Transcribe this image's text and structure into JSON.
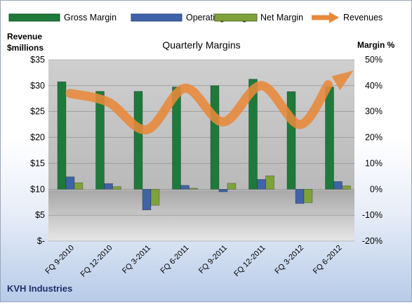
{
  "chart_data": {
    "type": "bar",
    "title": "Quarterly Margins",
    "left_axis_title": [
      "Revenue",
      "$millions"
    ],
    "right_axis_title": "Margin %",
    "footer": "KVH Industries",
    "categories": [
      "FQ 9-2010",
      "FQ 12-2010",
      "FQ 3-2011",
      "FQ 6-2011",
      "FQ 9-2011",
      "FQ 12-2011",
      "FQ 3-2012",
      "FQ 6-2012"
    ],
    "left_ticks": [
      "$35",
      "$30",
      "$25",
      "$20",
      "$15",
      "$10",
      "$5",
      "$-"
    ],
    "right_ticks": [
      "50%",
      "40%",
      "30%",
      "20%",
      "10%",
      "0%",
      "-10%",
      "-20%"
    ],
    "left_ylim": [
      0,
      35
    ],
    "right_ylim": [
      -20,
      50
    ],
    "series": [
      {
        "name": "Gross Margin",
        "axis": "right",
        "color": "#1e7a3a",
        "values": [
          41.5,
          37.8,
          37.8,
          39.5,
          40,
          42.5,
          37.7,
          39.5
        ]
      },
      {
        "name": "Operating Margin",
        "axis": "right",
        "color": "#3f63a8",
        "values": [
          4.8,
          2.2,
          -8,
          1.5,
          -1,
          3.8,
          -5.5,
          3
        ]
      },
      {
        "name": "Net Margin",
        "axis": "right",
        "color": "#7ea23a",
        "values": [
          2.5,
          1,
          -6.2,
          0.4,
          2.3,
          5.2,
          -5.2,
          1.3
        ]
      },
      {
        "name": "Revenues",
        "axis": "left",
        "type": "line",
        "color": "#e8893a",
        "values": [
          28.5,
          26.8,
          21.5,
          29.5,
          23,
          30,
          22.5,
          31
        ]
      }
    ],
    "grid": true,
    "legend_position": "top"
  }
}
